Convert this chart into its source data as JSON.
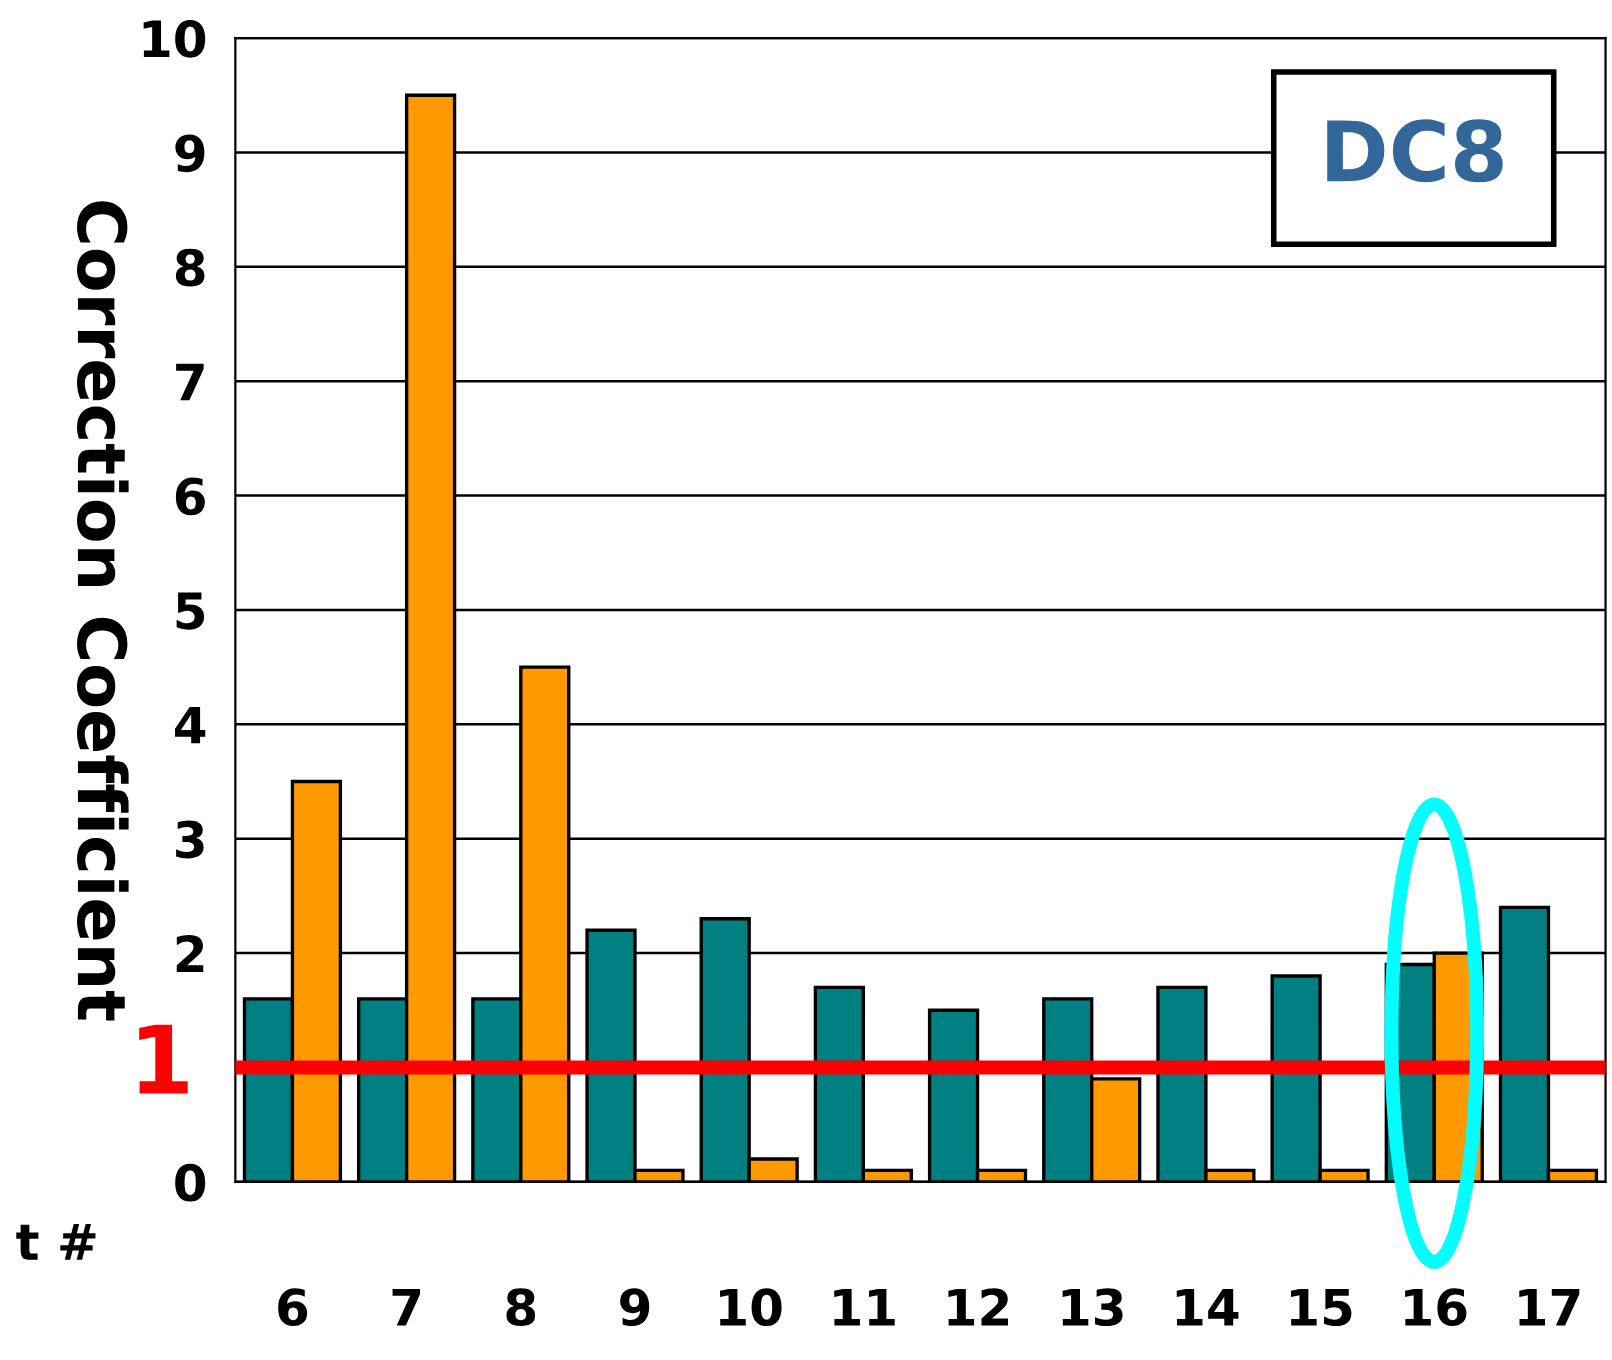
{
  "chart_data": {
    "type": "bar",
    "ylabel": "Correction Coefficient",
    "xlabel": "t #",
    "categories": [
      "6",
      "7",
      "8",
      "9",
      "10",
      "11",
      "12",
      "13",
      "14",
      "15",
      "16",
      "17"
    ],
    "series": [
      {
        "color": "#008080",
        "values": [
          1.6,
          1.6,
          1.6,
          2.2,
          2.3,
          1.7,
          1.5,
          1.6,
          1.7,
          1.8,
          1.9,
          2.4
        ]
      },
      {
        "color": "#ff9900",
        "values": [
          3.5,
          9.5,
          4.5,
          0.1,
          0.2,
          0.1,
          0.1,
          0.9,
          0.1,
          0.1,
          2.0,
          0.1
        ]
      }
    ],
    "ylim": [
      0,
      10
    ],
    "yticks": [
      0,
      {
        "value": 1,
        "label": null
      },
      2,
      3,
      4,
      5,
      6,
      7,
      8,
      9,
      10
    ],
    "grid": "y",
    "legend": false,
    "ref_lines": [
      {
        "axis": "y",
        "value": 1,
        "label": "1",
        "color": "#ff0000"
      }
    ],
    "annotations": [
      "DC8"
    ]
  }
}
